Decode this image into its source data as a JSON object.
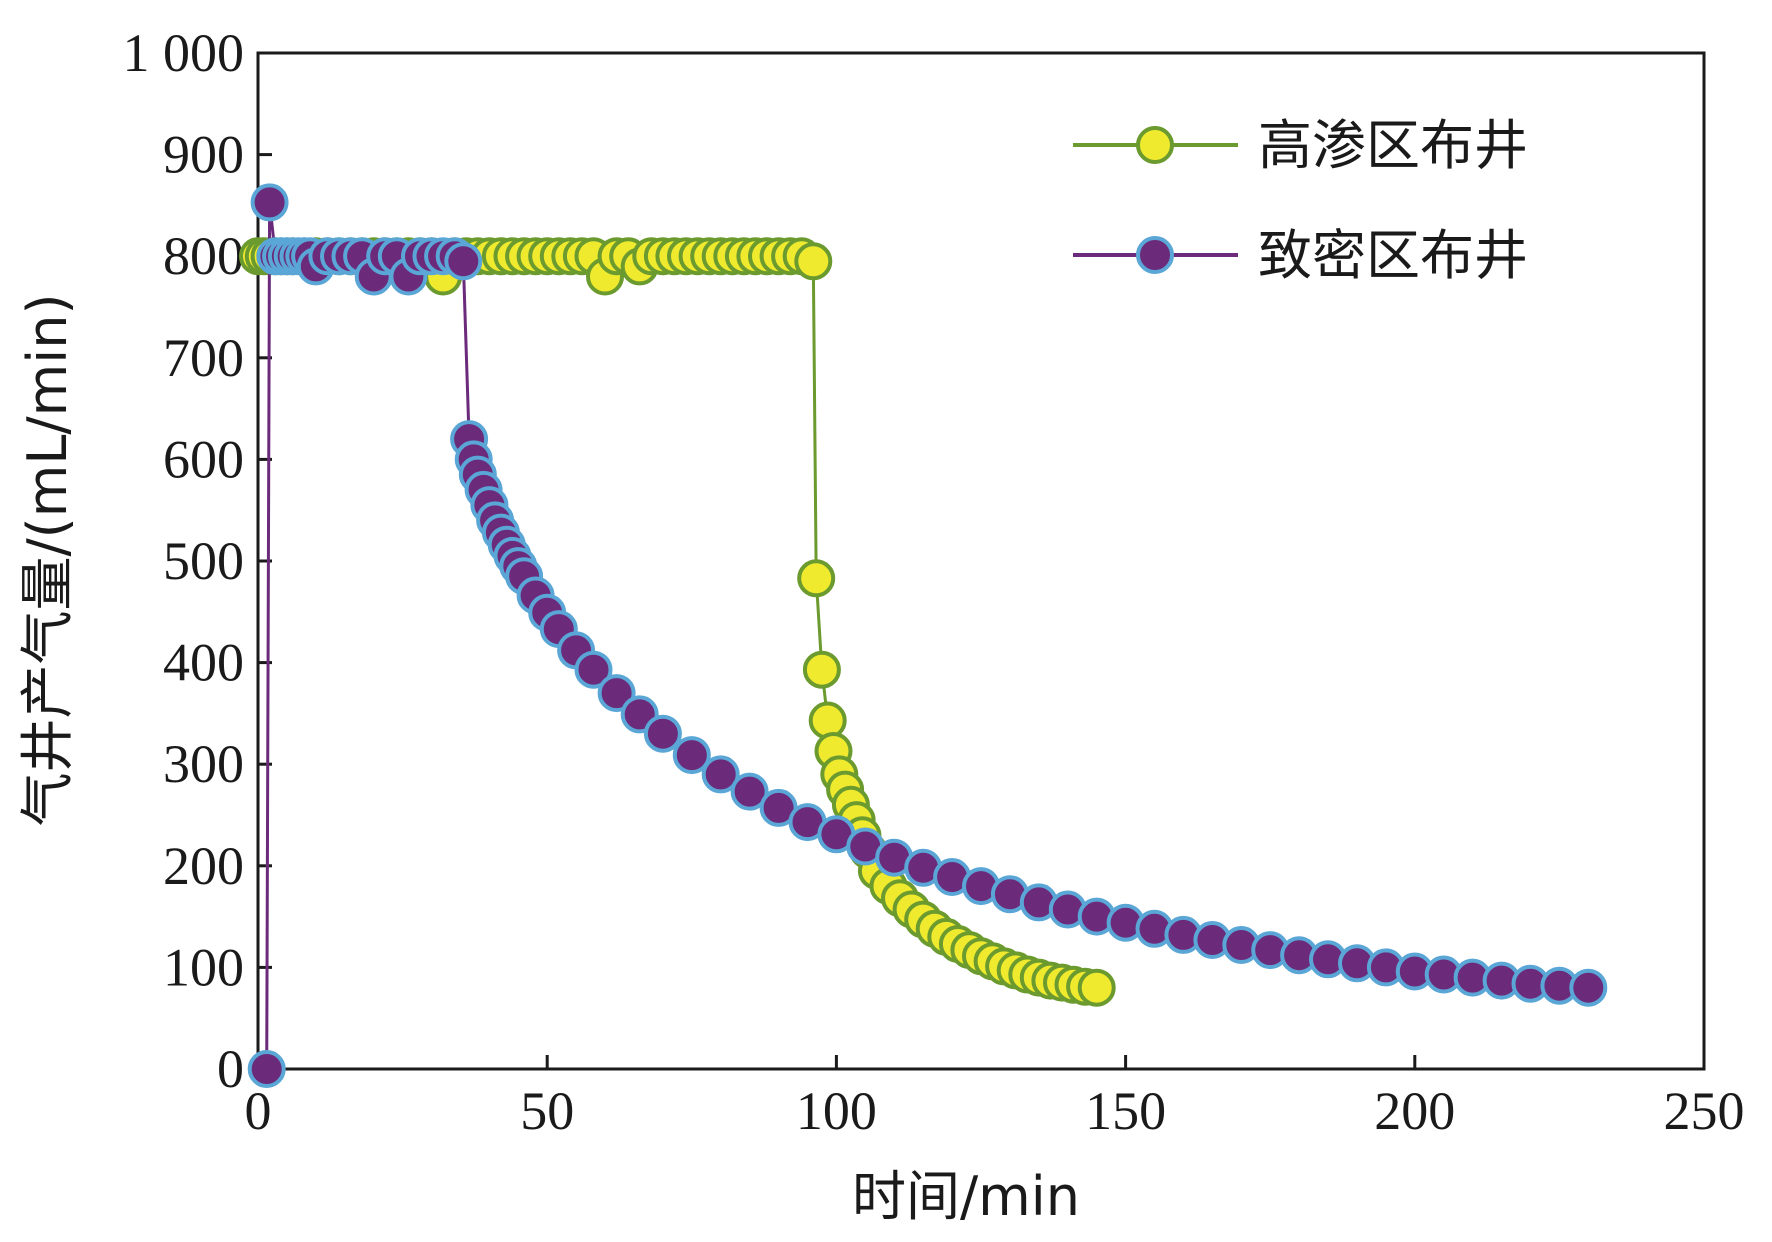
{
  "chart_data": {
    "type": "line",
    "title": "",
    "xlabel": "时间/min",
    "ylabel": "气井产气量/(mL/min)",
    "xlim": [
      0,
      250
    ],
    "ylim": [
      0,
      1000
    ],
    "x_ticks": [
      0,
      50,
      100,
      150,
      200,
      250
    ],
    "y_ticks": [
      0,
      100,
      200,
      300,
      400,
      500,
      600,
      700,
      800,
      900,
      1000
    ],
    "x_tick_labels": [
      "0",
      "50",
      "100",
      "150",
      "200",
      "250"
    ],
    "y_tick_labels": [
      "0",
      "100",
      "200",
      "300",
      "400",
      "500",
      "600",
      "700",
      "800",
      "900",
      "1 000"
    ],
    "grid": false,
    "legend_position": "top-right",
    "series": [
      {
        "name": "高渗区布井",
        "line_color": "#6b9a2e",
        "marker_fill": "#f0ea2e",
        "marker_edge": "#6b9a2e",
        "x": [
          0,
          1,
          2,
          3,
          4,
          5,
          6,
          8,
          10,
          12,
          14,
          16,
          18,
          20,
          22,
          24,
          26,
          28,
          30,
          32,
          34,
          36,
          38,
          40,
          42,
          44,
          46,
          48,
          50,
          52,
          54,
          56,
          58,
          60,
          62,
          64,
          66,
          68,
          70,
          72,
          74,
          76,
          78,
          80,
          82,
          84,
          86,
          88,
          90,
          92,
          94,
          96,
          96.5,
          97.5,
          98.5,
          99.5,
          100.5,
          101.5,
          102.5,
          103.5,
          104.5,
          105.5,
          107,
          109,
          111,
          113,
          115,
          117,
          119,
          121,
          123,
          125,
          127,
          129,
          131,
          133,
          135,
          137,
          139,
          141,
          143,
          145
        ],
        "y": [
          800,
          800,
          800,
          800,
          800,
          800,
          800,
          800,
          800,
          800,
          800,
          800,
          800,
          800,
          800,
          800,
          800,
          800,
          800,
          780,
          800,
          800,
          800,
          800,
          800,
          800,
          800,
          800,
          800,
          800,
          800,
          800,
          800,
          780,
          800,
          800,
          790,
          800,
          800,
          800,
          800,
          800,
          800,
          800,
          800,
          800,
          800,
          800,
          800,
          800,
          800,
          795,
          483,
          393,
          343,
          313,
          290,
          275,
          260,
          245,
          230,
          215,
          195,
          180,
          168,
          157,
          147,
          138,
          130,
          123,
          117,
          111,
          106,
          101,
          97,
          93,
          90,
          87,
          85,
          83,
          81,
          80
        ]
      },
      {
        "name": "致密区布井",
        "line_color": "#6b2a7a",
        "marker_fill": "#6b2a7a",
        "marker_edge": "#5aa6d6",
        "x": [
          1.5,
          2,
          3,
          4,
          5,
          6,
          7,
          8,
          9,
          10,
          12,
          14,
          16,
          18,
          20,
          22,
          24,
          26,
          28,
          30,
          32,
          34,
          35.5,
          36.5,
          37.3,
          38,
          39,
          40,
          41,
          42,
          43,
          44,
          45,
          46,
          48,
          50,
          52,
          55,
          58,
          62,
          66,
          70,
          75,
          80,
          85,
          90,
          95,
          100,
          105,
          110,
          115,
          120,
          125,
          130,
          135,
          140,
          145,
          150,
          155,
          160,
          165,
          170,
          175,
          180,
          185,
          190,
          195,
          200,
          205,
          210,
          215,
          220,
          225,
          230
        ],
        "y": [
          0,
          853,
          800,
          800,
          800,
          800,
          800,
          800,
          800,
          790,
          800,
          800,
          800,
          800,
          780,
          800,
          800,
          780,
          800,
          800,
          800,
          800,
          795,
          620,
          600,
          585,
          570,
          555,
          540,
          528,
          516,
          505,
          495,
          485,
          466,
          449,
          433,
          412,
          393,
          370,
          349,
          330,
          309,
          290,
          273,
          257,
          243,
          231,
          219,
          208,
          198,
          189,
          180,
          172,
          164,
          157,
          150,
          144,
          138,
          132,
          127,
          122,
          117,
          112,
          108,
          104,
          100,
          96,
          93,
          90,
          87,
          84,
          82,
          80
        ]
      }
    ]
  }
}
